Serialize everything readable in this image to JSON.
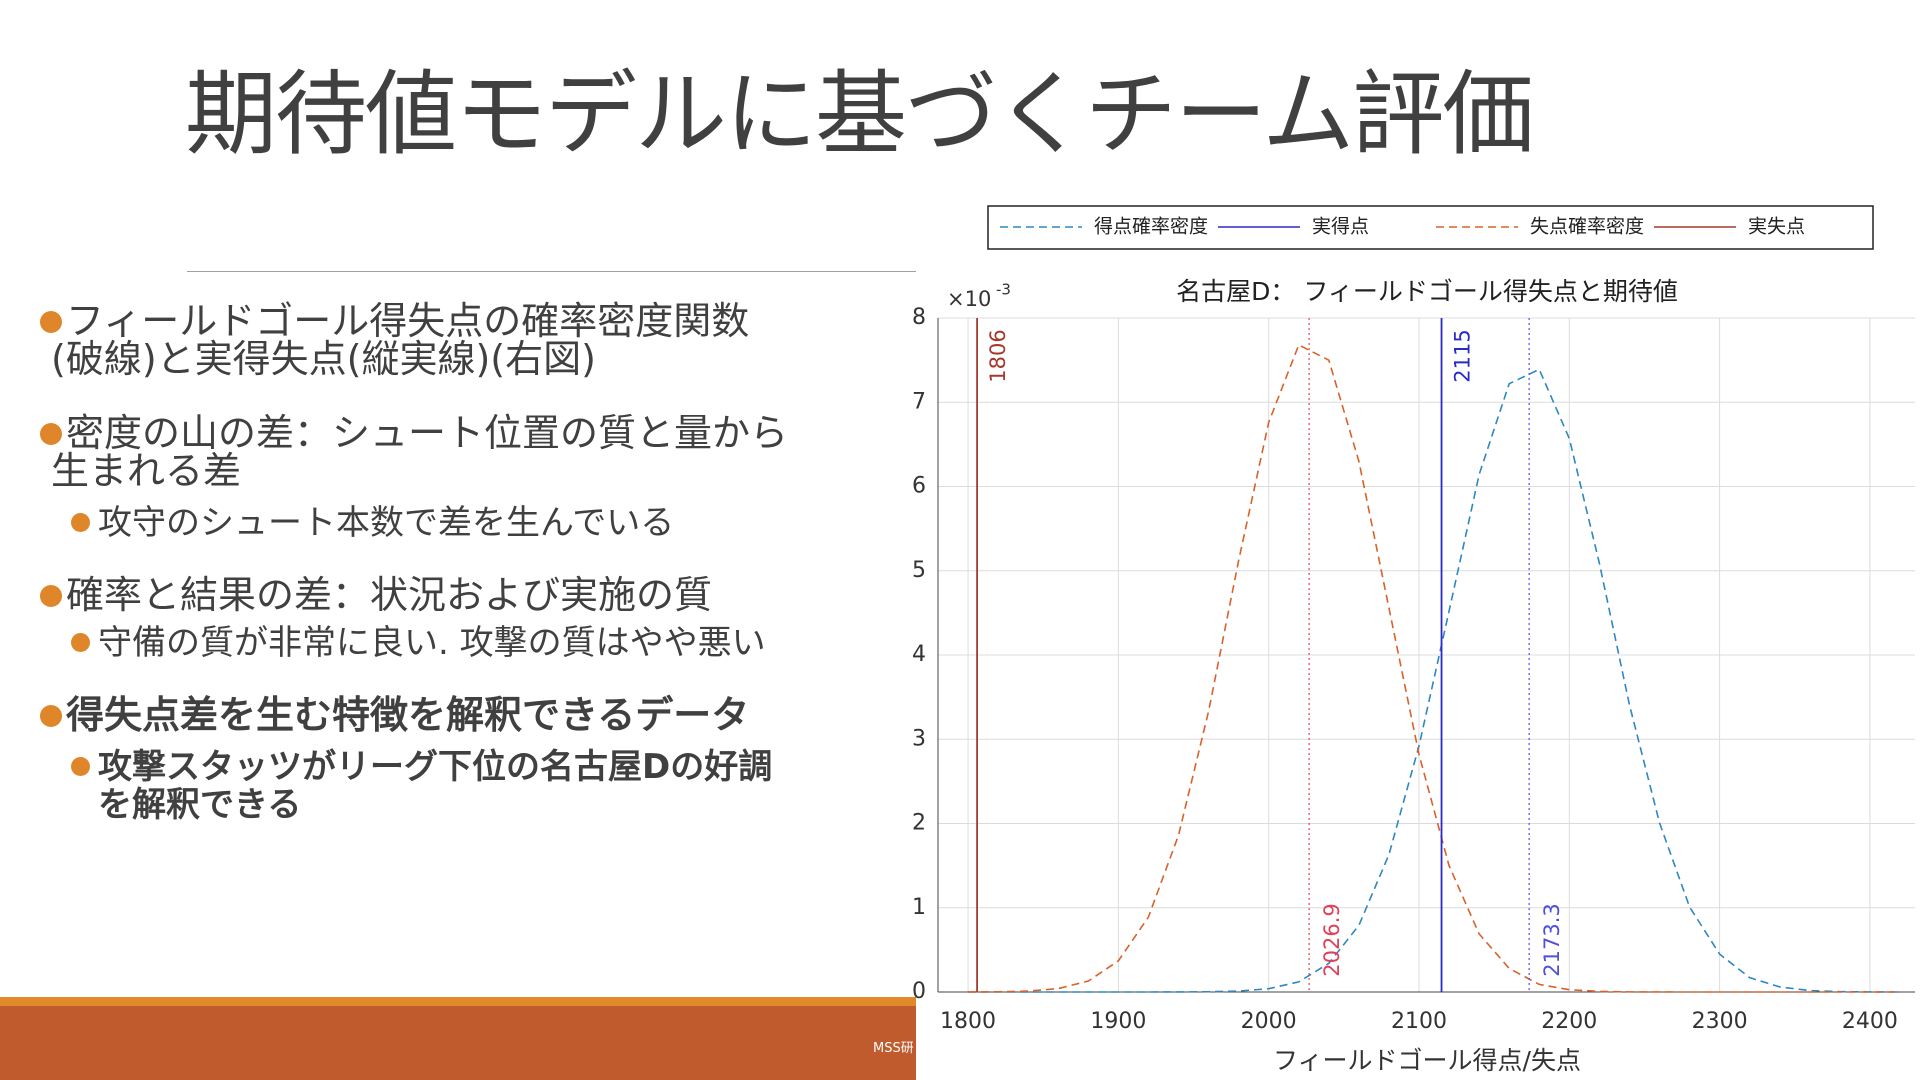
{
  "slide": {
    "title": "期待値モデルに基づくチーム評価",
    "bullets": [
      {
        "level": 1,
        "bold": false,
        "lines": [
          "フィールドゴール得失点の確率密度関数",
          "(破線)と実得失点(縦実線)(右図)"
        ]
      },
      {
        "level": 1,
        "bold": false,
        "lines": [
          "密度の山の差：シュート位置の質と量から",
          "生まれる差"
        ]
      },
      {
        "level": 2,
        "bold": false,
        "lines": [
          "攻守のシュート本数で差を生んでいる"
        ]
      },
      {
        "level": 1,
        "bold": false,
        "lines": [
          "確率と結果の差：状況および実施の質"
        ]
      },
      {
        "level": 2,
        "bold": false,
        "lines": [
          "守備の質が非常に良い. 攻撃の質はやや悪い"
        ]
      },
      {
        "level": 1,
        "bold": true,
        "lines": [
          "得失点差を生む特徴を解釈できるデータ"
        ]
      },
      {
        "level": 2,
        "bold": true,
        "lines": [
          "攻撃スタッツがリーグ下位の名古屋Dの好調",
          "を解釈できる"
        ]
      }
    ],
    "footer": "MSS研"
  },
  "chart_data": {
    "type": "line",
    "title": "名古屋D： フィールドゴール得失点と期待値",
    "xlabel": "フィールドゴール得点/失点",
    "y_scale_label": "×10",
    "y_scale_exponent": "-3",
    "x": [
      1800,
      1820,
      1840,
      1860,
      1880,
      1900,
      1920,
      1940,
      1960,
      1980,
      2000,
      2020,
      2040,
      2060,
      2080,
      2100,
      2120,
      2140,
      2160,
      2180,
      2200,
      2220,
      2240,
      2260,
      2280,
      2300,
      2320,
      2340,
      2360,
      2380,
      2400,
      2420
    ],
    "series": [
      {
        "name": "得点確率密度",
        "color": "#2f87c0",
        "dashed": true,
        "values": [
          0,
          0,
          0,
          0,
          0,
          0,
          0,
          0.0006,
          0.003,
          0.011,
          0.039,
          0.12,
          0.34,
          0.79,
          1.63,
          2.92,
          4.52,
          6.14,
          7.22,
          7.39,
          6.57,
          5.09,
          3.41,
          2.01,
          1.01,
          0.45,
          0.17,
          0.06,
          0.017,
          0.004,
          0.001,
          0
        ]
      },
      {
        "name": "失点確率密度",
        "color": "#d9622b",
        "dashed": true,
        "values": [
          0.0005,
          0.002,
          0.011,
          0.04,
          0.13,
          0.37,
          0.89,
          1.86,
          3.33,
          5.12,
          6.76,
          7.68,
          7.5,
          6.3,
          4.56,
          2.82,
          1.5,
          0.69,
          0.28,
          0.09,
          0.027,
          0.007,
          0.0015,
          0.0003,
          0,
          0,
          0,
          0,
          0,
          0,
          0,
          0
        ]
      }
    ],
    "vlines": [
      {
        "name": "実得点",
        "value": 2115,
        "color": "#2a2ac8"
      },
      {
        "name": "実失点",
        "value": 1806,
        "color": "#a33a2e"
      }
    ],
    "mean_lines": [
      {
        "value": 2173.3,
        "color": "#5050d8"
      },
      {
        "value": 2026.9,
        "color": "#e0405a"
      }
    ],
    "xlim": [
      1780,
      2430
    ],
    "ylim": [
      0,
      8
    ],
    "xticks": [
      1800,
      1900,
      2000,
      2100,
      2200,
      2300,
      2400
    ],
    "yticks": [
      0,
      1,
      2,
      3,
      4,
      5,
      6,
      7,
      8
    ],
    "grid": true
  }
}
